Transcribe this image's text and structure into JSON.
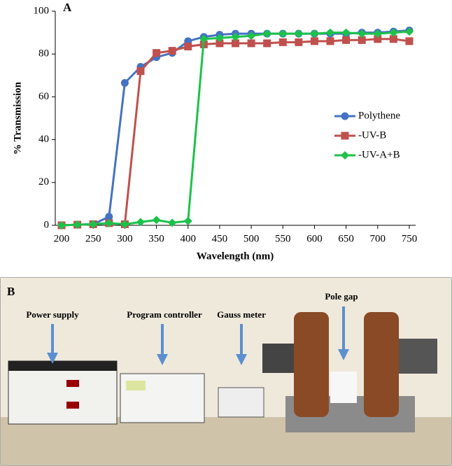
{
  "chart_data": {
    "type": "line",
    "panel_label": "A",
    "x_label": "Wavelength (nm)",
    "y_label": "% Transmission",
    "x": [
      200,
      225,
      250,
      275,
      300,
      325,
      350,
      375,
      400,
      425,
      450,
      475,
      500,
      525,
      550,
      575,
      600,
      625,
      650,
      675,
      700,
      725,
      750
    ],
    "series": [
      {
        "name": "Polythene",
        "color": "#4472c4",
        "marker": "circle",
        "values": [
          0,
          0.3,
          0.5,
          4,
          66.5,
          74,
          78.5,
          80.5,
          86,
          88,
          89,
          89.5,
          89.5,
          89.5,
          89.5,
          89.5,
          89.5,
          89.5,
          89.5,
          90,
          90,
          90.5,
          91
        ]
      },
      {
        "name": "-UV-B",
        "color": "#c0504d",
        "marker": "square",
        "values": [
          0,
          0.3,
          0.5,
          1,
          0.5,
          72,
          80.5,
          81.5,
          83.5,
          84.5,
          85,
          85,
          85,
          85,
          85.5,
          85.5,
          86,
          86,
          86.5,
          86.5,
          87,
          87,
          86
        ]
      },
      {
        "name": "-UV-A+B",
        "color": "#1cc24a",
        "marker": "diamond",
        "values": [
          0,
          0.3,
          0.5,
          1,
          0.5,
          1.5,
          2.5,
          1.2,
          2,
          87,
          87.5,
          88,
          88.5,
          89.5,
          89.5,
          89.5,
          89.5,
          90,
          90,
          89.5,
          89.5,
          90,
          90.5
        ]
      }
    ],
    "xlim": [
      190,
      760
    ],
    "xticks": [
      200,
      250,
      300,
      350,
      400,
      450,
      500,
      550,
      600,
      650,
      700,
      750
    ],
    "ylim": [
      0,
      100
    ],
    "yticks": [
      0,
      20,
      40,
      60,
      80,
      100
    ],
    "grid": false
  },
  "photo": {
    "panel_label": "B",
    "labels": [
      "Power supply",
      "Program controller",
      "Gauss meter",
      "Pole gap"
    ]
  }
}
